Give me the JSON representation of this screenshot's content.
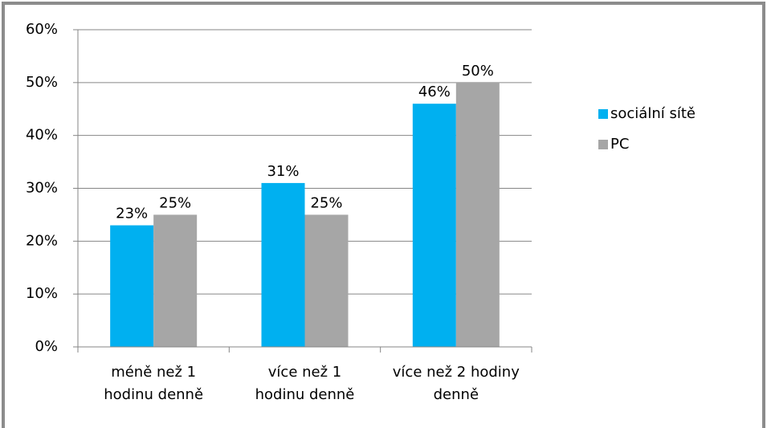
{
  "chart_data": {
    "type": "bar",
    "categories": [
      "méně než 1\nhodinu denně",
      "více než 1\nhodinu denně",
      "více než 2 hodiny\ndenně"
    ],
    "series": [
      {
        "name": "sociální sítě",
        "color": "#00b0f0",
        "values": [
          23,
          31,
          46
        ],
        "value_labels": [
          "23%",
          "31%",
          "46%"
        ]
      },
      {
        "name": "PC",
        "color": "#a6a6a6",
        "values": [
          25,
          25,
          50
        ],
        "value_labels": [
          "25%",
          "25%",
          "50%"
        ]
      }
    ],
    "ylim": [
      0,
      60
    ],
    "yticks": [
      {
        "value": 0,
        "label": "0%"
      },
      {
        "value": 10,
        "label": "10%"
      },
      {
        "value": 20,
        "label": "20%"
      },
      {
        "value": 30,
        "label": "30%"
      },
      {
        "value": 40,
        "label": "40%"
      },
      {
        "value": 50,
        "label": "50%"
      },
      {
        "value": 60,
        "label": "60%"
      }
    ],
    "grid": true,
    "legend": "right"
  }
}
